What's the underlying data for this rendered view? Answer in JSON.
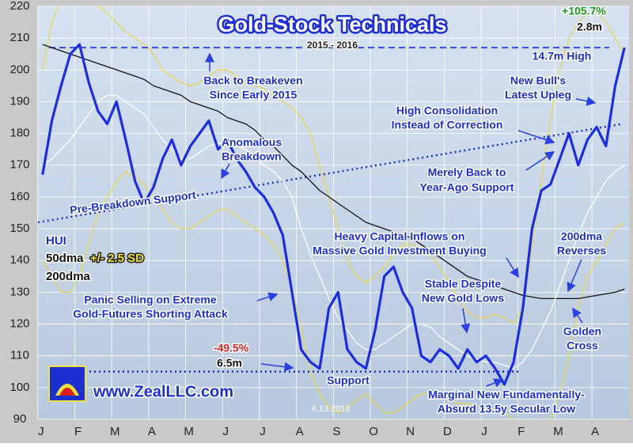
{
  "chart_data": {
    "type": "line",
    "title": "Gold-Stock Technicals",
    "subtitle": "2015 - 2016",
    "categories": [
      "J",
      null,
      null,
      null,
      "F",
      null,
      null,
      null,
      "M",
      null,
      null,
      null,
      "A",
      null,
      null,
      null,
      "M",
      null,
      null,
      null,
      "J",
      null,
      null,
      null,
      "J",
      null,
      null,
      null,
      "A",
      null,
      null,
      null,
      "S",
      null,
      null,
      null,
      "O",
      null,
      null,
      null,
      "N",
      null,
      null,
      null,
      "D",
      null,
      null,
      null,
      "J",
      null,
      null,
      null,
      "F",
      null,
      null,
      null,
      "M",
      null,
      null,
      null,
      "A",
      null,
      null,
      null
    ],
    "series": [
      {
        "name": "HUI",
        "color": "#1a2ee0",
        "width": 3.2,
        "values": [
          167,
          184,
          195,
          205,
          208,
          196,
          187,
          183,
          190,
          178,
          165,
          158,
          163,
          172,
          178,
          170,
          176,
          180,
          184,
          175,
          178,
          172,
          168,
          163,
          160,
          155,
          148,
          130,
          112,
          108,
          106,
          125,
          130,
          112,
          108,
          106,
          118,
          135,
          138,
          130,
          125,
          110,
          108,
          112,
          110,
          106,
          112,
          108,
          110,
          106,
          101,
          108,
          125,
          150,
          162,
          164,
          172,
          180,
          170,
          178,
          182,
          176,
          195,
          207
        ]
      },
      {
        "name": "50dma",
        "color": "#ffffff",
        "width": 1.3,
        "values": [
          170,
          172,
          175,
          178,
          182,
          186,
          190,
          192,
          192,
          190,
          188,
          186,
          182,
          178,
          175,
          172,
          172,
          174,
          176,
          177,
          177,
          176,
          175,
          172,
          170,
          168,
          165,
          160,
          150,
          142,
          135,
          128,
          122,
          118,
          114,
          112,
          112,
          114,
          116,
          118,
          120,
          120,
          119,
          116,
          114,
          112,
          110,
          109,
          108,
          108,
          107,
          106,
          108,
          112,
          118,
          124,
          132,
          140,
          148,
          155,
          160,
          165,
          168,
          170
        ]
      },
      {
        "name": "200dma",
        "color": "#111111",
        "width": 1.3,
        "values": [
          208,
          207,
          206,
          205,
          204,
          203,
          202,
          201,
          200,
          199,
          198,
          197,
          195,
          194,
          193,
          192,
          190,
          189,
          188,
          187,
          185,
          184,
          183,
          181,
          178,
          176,
          173,
          170,
          168,
          165,
          162,
          160,
          158,
          156,
          154,
          152,
          151,
          150,
          149,
          148,
          147,
          145,
          143,
          141,
          139,
          137,
          135,
          134,
          133,
          132,
          131,
          130,
          129,
          128.5,
          128,
          128,
          128,
          128,
          128,
          128.5,
          129,
          129.5,
          130,
          131
        ]
      }
    ],
    "bands": {
      "name": "+/- 2.5 SD",
      "color": "#e8d84a",
      "upper": [
        200,
        215,
        222,
        225,
        225,
        222,
        220,
        218,
        215,
        212,
        210,
        208,
        205,
        200,
        198,
        196,
        195,
        196,
        198,
        200,
        200,
        198,
        196,
        195,
        194,
        192,
        190,
        188,
        185,
        180,
        170,
        160,
        150,
        140,
        135,
        133,
        135,
        138,
        142,
        145,
        145,
        144,
        142,
        138,
        133,
        128,
        124,
        122,
        122,
        123,
        122,
        120,
        125,
        145,
        165,
        185,
        200,
        210,
        215,
        218,
        218,
        215,
        210,
        205
      ],
      "lower": [
        140,
        135,
        130,
        130,
        135,
        145,
        155,
        160,
        165,
        168,
        166,
        164,
        160,
        156,
        152,
        150,
        150,
        152,
        154,
        156,
        156,
        154,
        152,
        150,
        148,
        145,
        140,
        132,
        118,
        105,
        98,
        94,
        92,
        94,
        96,
        98,
        95,
        92,
        92,
        94,
        96,
        98,
        98,
        97,
        96,
        95,
        95,
        94,
        94,
        93,
        92,
        90,
        88,
        85,
        86,
        90,
        98,
        110,
        125,
        135,
        140,
        145,
        150,
        152
      ]
    },
    "breakeven": 207,
    "support": 105,
    "trend": {
      "start": 152,
      "end": 183
    },
    "ylim": [
      90,
      220
    ],
    "yticks": [
      90,
      100,
      110,
      120,
      130,
      140,
      150,
      160,
      170,
      180,
      190,
      200,
      210,
      220
    ],
    "grid": true,
    "annotations": {
      "gain": "+105.7%",
      "gain_days": "2.8m",
      "loss": "-49.5%",
      "loss_days": "6.5m",
      "high": "14.7m High",
      "breakeven": [
        "Back to Breakeven",
        "Since Early 2015"
      ],
      "upleg": [
        "New Bull's",
        "Latest Upleg"
      ],
      "consolidation": [
        "High Consolidation",
        "Instead of Correction"
      ],
      "anomalous": [
        "Anomalous",
        "Breakdown"
      ],
      "merely": [
        "Merely Back to",
        "Year-Ago Support"
      ],
      "prebreak": "Pre-Breakdown Support",
      "inflows": [
        "Heavy Capital Inflows on",
        "Massive Gold Investment Buying"
      ],
      "reverses": [
        "200dma",
        "Reverses"
      ],
      "stable": [
        "Stable Despite",
        "New Gold Lows"
      ],
      "panic": [
        "Panic Selling on Extreme",
        "Gold-Futures Shorting Attack"
      ],
      "golden": [
        "Golden",
        "Cross"
      ],
      "support": "Support",
      "low": [
        "Marginal New Fundamentally-",
        "Absurd 13.5y Secular Low"
      ],
      "site": "www.ZealLLC.com",
      "date": "4.13.2016"
    }
  }
}
